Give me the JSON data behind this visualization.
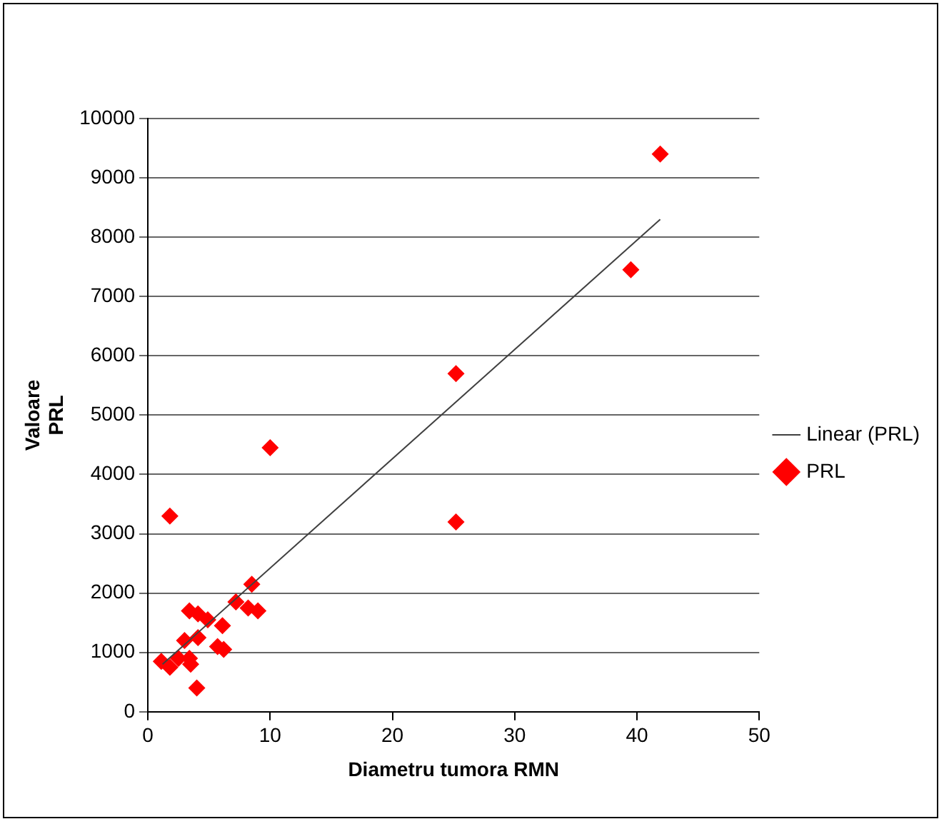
{
  "chart_data": {
    "type": "scatter",
    "xlabel": "Diametru tumora RMN",
    "ylabel": "Valoare PRL",
    "xlim": [
      0,
      50
    ],
    "xticks": [
      0,
      10,
      20,
      30,
      40,
      50
    ],
    "ylim": [
      0,
      10000
    ],
    "yticks": [
      0,
      1000,
      2000,
      3000,
      4000,
      5000,
      6000,
      7000,
      8000,
      9000,
      10000
    ],
    "grid": "y",
    "legend": "right",
    "marker": "diamond",
    "series": [
      {
        "name": "PRL",
        "color": "#ff0000",
        "x": [
          41.9,
          39.5,
          25.2,
          10.0,
          1.8,
          25.2,
          8.5,
          7.2,
          8.2,
          9.0,
          3.4,
          4.1,
          4.9,
          6.1,
          3.0,
          4.1,
          5.7,
          6.2,
          1.1,
          1.8,
          2.5,
          3.4,
          3.5,
          4.0
        ],
        "values": [
          9400,
          7450,
          5700,
          4450,
          3300,
          3200,
          2150,
          1850,
          1750,
          1700,
          1700,
          1650,
          1550,
          1450,
          1200,
          1250,
          1100,
          1050,
          850,
          750,
          900,
          900,
          800,
          400
        ]
      },
      {
        "name": "Linear (PRL)",
        "type": "line",
        "color": "#404040",
        "marker": "none",
        "x": [
          1.2,
          41.9
        ],
        "values": [
          800,
          8300
        ]
      }
    ]
  }
}
